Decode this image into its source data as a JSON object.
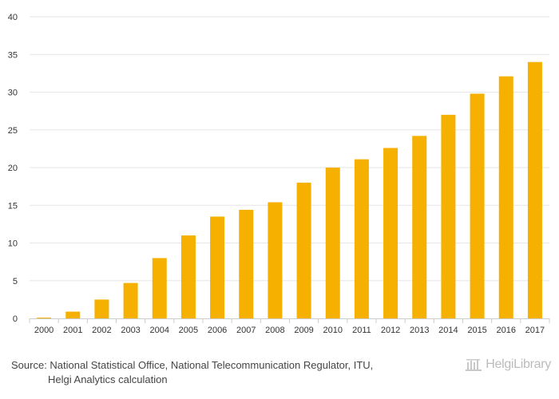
{
  "chart_data": {
    "type": "bar",
    "title": "",
    "xlabel": "",
    "ylabel": "",
    "categories": [
      "2000",
      "2001",
      "2002",
      "2003",
      "2004",
      "2005",
      "2006",
      "2007",
      "2008",
      "2009",
      "2010",
      "2011",
      "2012",
      "2013",
      "2014",
      "2015",
      "2016",
      "2017"
    ],
    "values": [
      0.1,
      0.9,
      2.5,
      4.7,
      8.0,
      11.0,
      13.5,
      14.4,
      15.4,
      18.0,
      20.0,
      21.1,
      22.6,
      24.2,
      27.0,
      29.8,
      32.1,
      34.0
    ],
    "ylim": [
      0,
      40
    ],
    "yticks": [
      0,
      5,
      10,
      15,
      20,
      25,
      30,
      35,
      40
    ],
    "bar_color": "#f6b100",
    "grid": true
  },
  "footer": {
    "source_line1": "Source: National Statistical Office, National Telecommunication Regulator, ITU,",
    "source_line2": "Helgi Analytics calculation"
  },
  "logo": {
    "text": "HelgiLibrary",
    "icon": "library-building-icon"
  }
}
